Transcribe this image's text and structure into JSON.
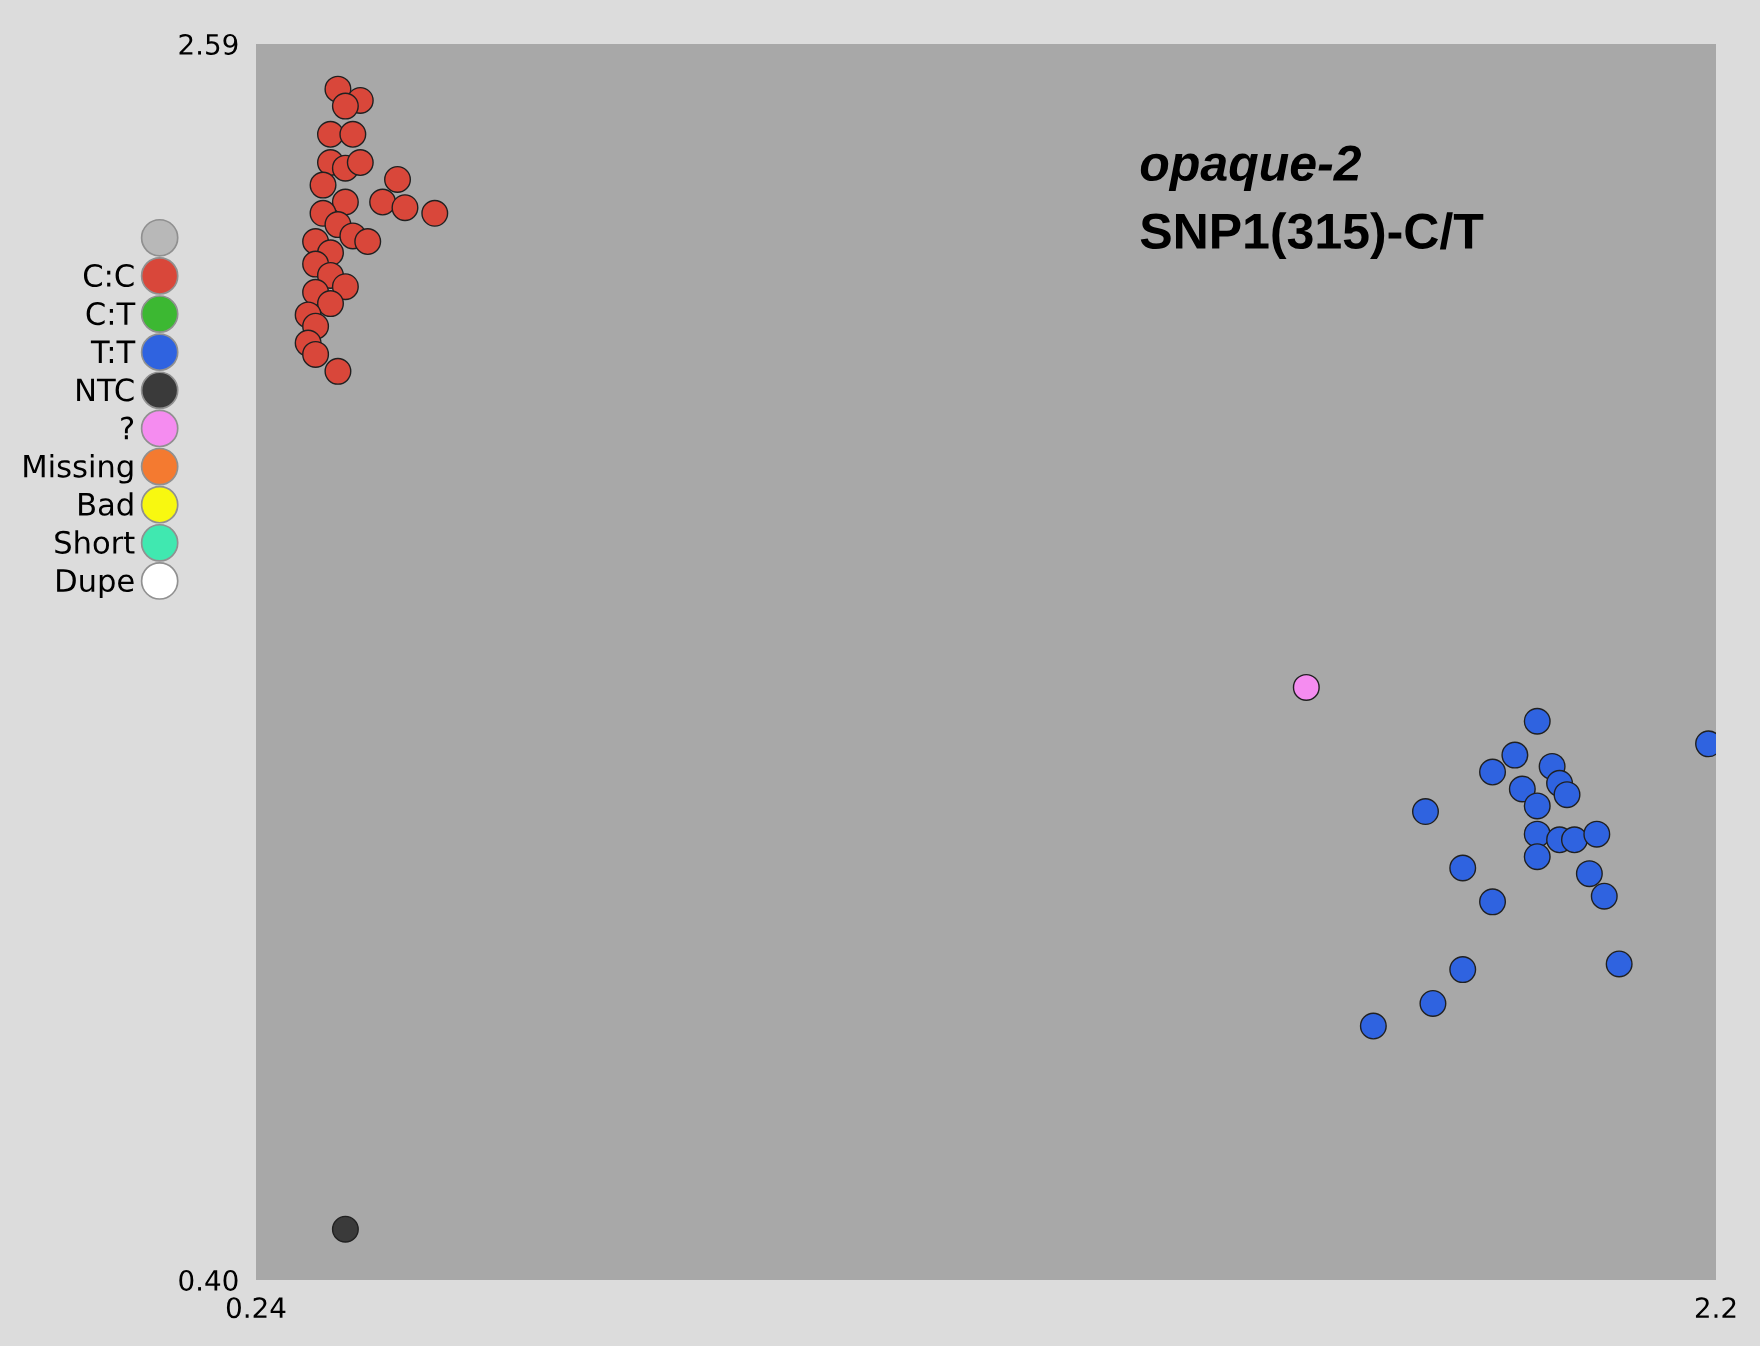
{
  "chart_data": {
    "type": "scatter",
    "annotations": [
      "opaque-2",
      "SNP1(315)-C/T"
    ],
    "xlim": [
      0.24,
      2.2
    ],
    "xticks": [
      0.24,
      2.2
    ],
    "ylim": [
      0.4,
      2.59
    ],
    "yticks": [
      {
        "value": 0.4,
        "label": "0.40"
      },
      2.59
    ],
    "grid": false,
    "legend": "left",
    "marker": "circle",
    "series": [
      {
        "color": "#b8b8b8"
      },
      {
        "name": "C:C",
        "color": "#d9473a",
        "x": [
          0.35,
          0.38,
          0.36,
          0.34,
          0.37,
          0.34,
          0.36,
          0.38,
          0.43,
          0.41,
          0.44,
          0.48,
          0.33,
          0.36,
          0.33,
          0.35,
          0.37,
          0.39,
          0.32,
          0.34,
          0.32,
          0.34,
          0.36,
          0.32,
          0.34,
          0.31,
          0.32,
          0.31,
          0.32,
          0.35
        ],
        "values": [
          2.51,
          2.49,
          2.48,
          2.43,
          2.43,
          2.38,
          2.37,
          2.38,
          2.35,
          2.31,
          2.3,
          2.29,
          2.34,
          2.31,
          2.29,
          2.27,
          2.25,
          2.24,
          2.24,
          2.22,
          2.2,
          2.18,
          2.16,
          2.15,
          2.13,
          2.11,
          2.09,
          2.06,
          2.04,
          2.01
        ]
      },
      {
        "name": "C:T",
        "color": "#3cb832"
      },
      {
        "name": "T:T",
        "color": "#2f63e0",
        "x": [
          1.96,
          1.93,
          1.9,
          1.98,
          1.99,
          1.94,
          2.0,
          1.96,
          1.81,
          1.96,
          1.99,
          2.01,
          2.04,
          1.96,
          2.03,
          2.05,
          1.86,
          1.9,
          2.07,
          1.86,
          1.82,
          1.74,
          2.19
        ],
        "values": [
          1.39,
          1.33,
          1.3,
          1.31,
          1.28,
          1.27,
          1.26,
          1.24,
          1.23,
          1.19,
          1.18,
          1.18,
          1.19,
          1.15,
          1.12,
          1.08,
          1.13,
          1.07,
          0.96,
          0.95,
          0.89,
          0.85,
          1.35
        ]
      },
      {
        "name": "NTC",
        "color": "#3a3a3a",
        "x": [
          0.36
        ],
        "values": [
          0.49
        ]
      },
      {
        "name": "?",
        "color": "#f58cf0",
        "x": [
          1.65
        ],
        "values": [
          1.45
        ]
      },
      {
        "name": "Missing",
        "color": "#f47a30"
      },
      {
        "name": "Bad",
        "color": "#f8f810"
      },
      {
        "name": "Short",
        "color": "#40e8b0"
      },
      {
        "name": "Dupe",
        "color": "#ffffff"
      }
    ]
  }
}
